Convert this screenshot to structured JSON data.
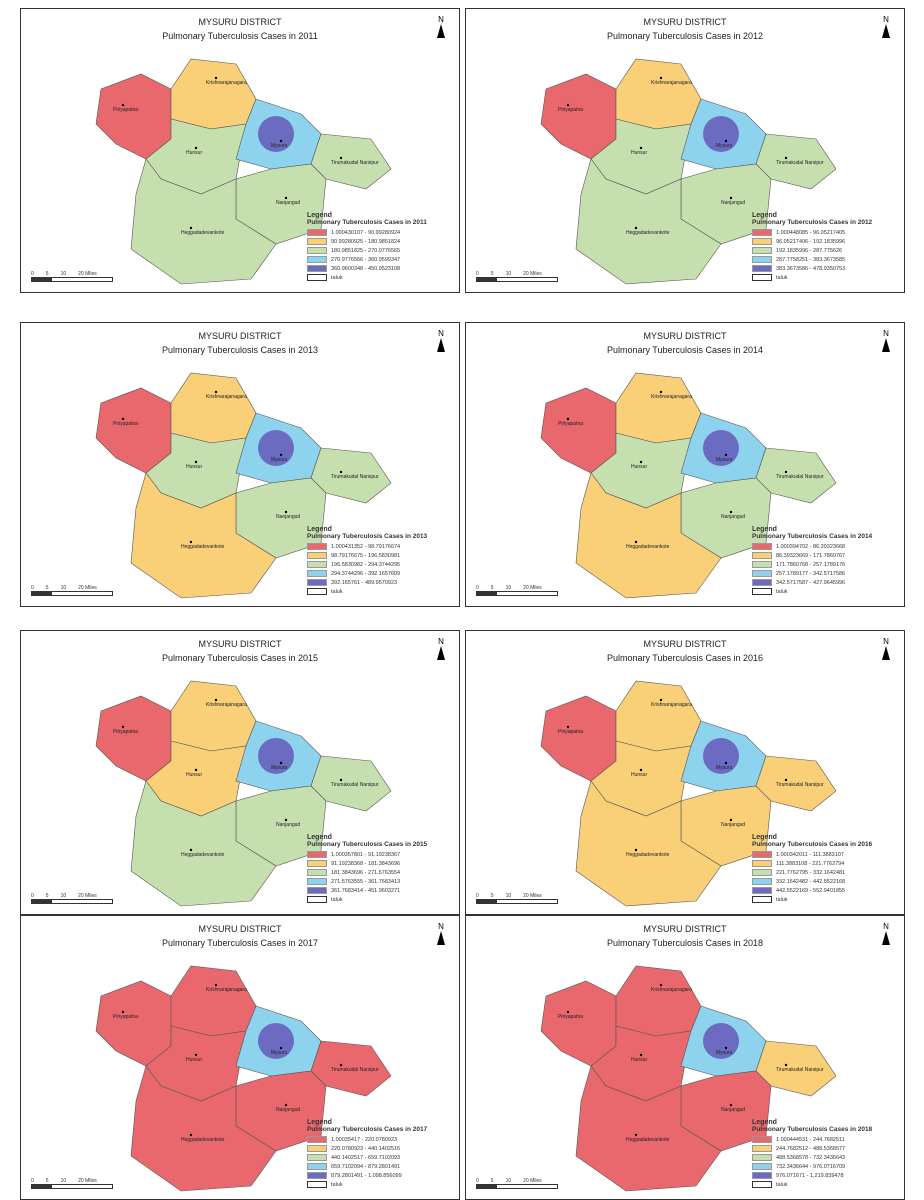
{
  "district": "MYSURU DISTRICT",
  "legend_title": "Legend",
  "scale_labels": [
    "0",
    "5",
    "10",
    "20 Miles"
  ],
  "colors": [
    "#e8686e",
    "#f9cf78",
    "#c6dfae",
    "#8dd3ee",
    "#6c6bc2"
  ],
  "taluk_names": [
    "Piriyapatna",
    "Krishnarajanagara",
    "Hunsur",
    "Mysuru",
    "Tirumakudal Narsipur",
    "Nanjangud",
    "Heggadadevankote"
  ],
  "taluk_label": "taluk",
  "maps": [
    {
      "title": "Pulmonary Tuberculosis Cases in 2011",
      "legend_subtitle": "Pulmonary Tuberculosis Cases in 2011",
      "classes": [
        "1.000430107 - 90.99280924",
        "90.99280925 - 180.9851824",
        "180.9851825 - 270.9776565",
        "270.9776566 - 360.9599347",
        "360.9600348 - 450.9523108"
      ],
      "taluk_class": [
        0,
        1,
        2,
        3,
        2,
        2,
        2
      ]
    },
    {
      "title": "Pulmonary Tuberculosis Cases in 2012",
      "legend_subtitle": "Pulmonary Tuberculosis Cases in 2012",
      "classes": [
        "1.000448085 - 96.05217405",
        "96.05217406 - 192.1835996",
        "192.1835996 - 287.775626",
        "287.7758251 - 383.3673585",
        "383.3673586 - 478.9350753"
      ],
      "taluk_class": [
        0,
        1,
        2,
        3,
        2,
        2,
        2
      ]
    },
    {
      "title": "Pulmonary Tuberculosis Cases in 2013",
      "legend_subtitle": "Pulmonary Tuberculosis Cases in 2013",
      "classes": [
        "1.000431352 - 98.79176674",
        "98.79176675 - 196.5830981",
        "196.5830982 - 294.3744295",
        "294.3744296 - 392.1657609",
        "392.165761 - 489.9570923"
      ],
      "taluk_class": [
        0,
        1,
        2,
        3,
        2,
        2,
        1
      ]
    },
    {
      "title": "Pulmonary Tuberculosis Cases in 2014",
      "legend_subtitle": "Pulmonary Tuberculosis Cases in 2014",
      "classes": [
        "1.000394702 - 86.39323668",
        "86.39323669 - 171.7860767",
        "171.7860768 - 257.1789176",
        "257.1789177 - 342.5717586",
        "342.5717587 - 427.9645996"
      ],
      "taluk_class": [
        0,
        1,
        2,
        3,
        2,
        2,
        1
      ]
    },
    {
      "title": "Pulmonary Tuberculosis Cases in 2015",
      "legend_subtitle": "Pulmonary Tuberculosis Cases in 2015",
      "classes": [
        "1.000357801 - 91.19238367",
        "91.19238368 - 181.3843696",
        "181.3843696 - 271.5763554",
        "271.5763555 - 361.7683413",
        "361.7683414 - 451.9603271"
      ],
      "taluk_class": [
        0,
        1,
        1,
        3,
        2,
        2,
        2
      ]
    },
    {
      "title": "Pulmonary Tuberculosis Cases in 2016",
      "legend_subtitle": "Pulmonary Tuberculosis Cases in 2016",
      "classes": [
        "1.000342011 - 111.3883107",
        "111.3883108 - 221.7762794",
        "221.7762795 - 332.1642481",
        "332.1642482 - 442.5522168",
        "442.5522169 - 552.9401855"
      ],
      "taluk_class": [
        0,
        1,
        1,
        3,
        1,
        1,
        1
      ]
    },
    {
      "title": "Pulmonary Tuberculosis Cases in 2017",
      "legend_subtitle": "Pulmonary Tuberculosis Cases in 2017",
      "classes": [
        "1.00035417 - 220.0780923",
        "220.0780923 - 440.1402516",
        "440.1402517 - 659.7102093",
        "659.7102094 - 879.2801491",
        "879.2801491 - 1,098.856099"
      ],
      "taluk_class": [
        0,
        0,
        0,
        3,
        0,
        0,
        0
      ]
    },
    {
      "title": "Pulmonary Tuberculosis Cases in 2018",
      "legend_subtitle": "Pulmonary Tuberculosis Cases in 2018",
      "classes": [
        "1.000444531 - 244.7682511",
        "244.7682512 - 488.5368577",
        "488.5368578 - 732.3436643",
        "732.3436644 - 976.0716709",
        "976.071671 - 1,219.839478"
      ],
      "taluk_class": [
        0,
        0,
        0,
        3,
        1,
        0,
        0
      ]
    }
  ]
}
